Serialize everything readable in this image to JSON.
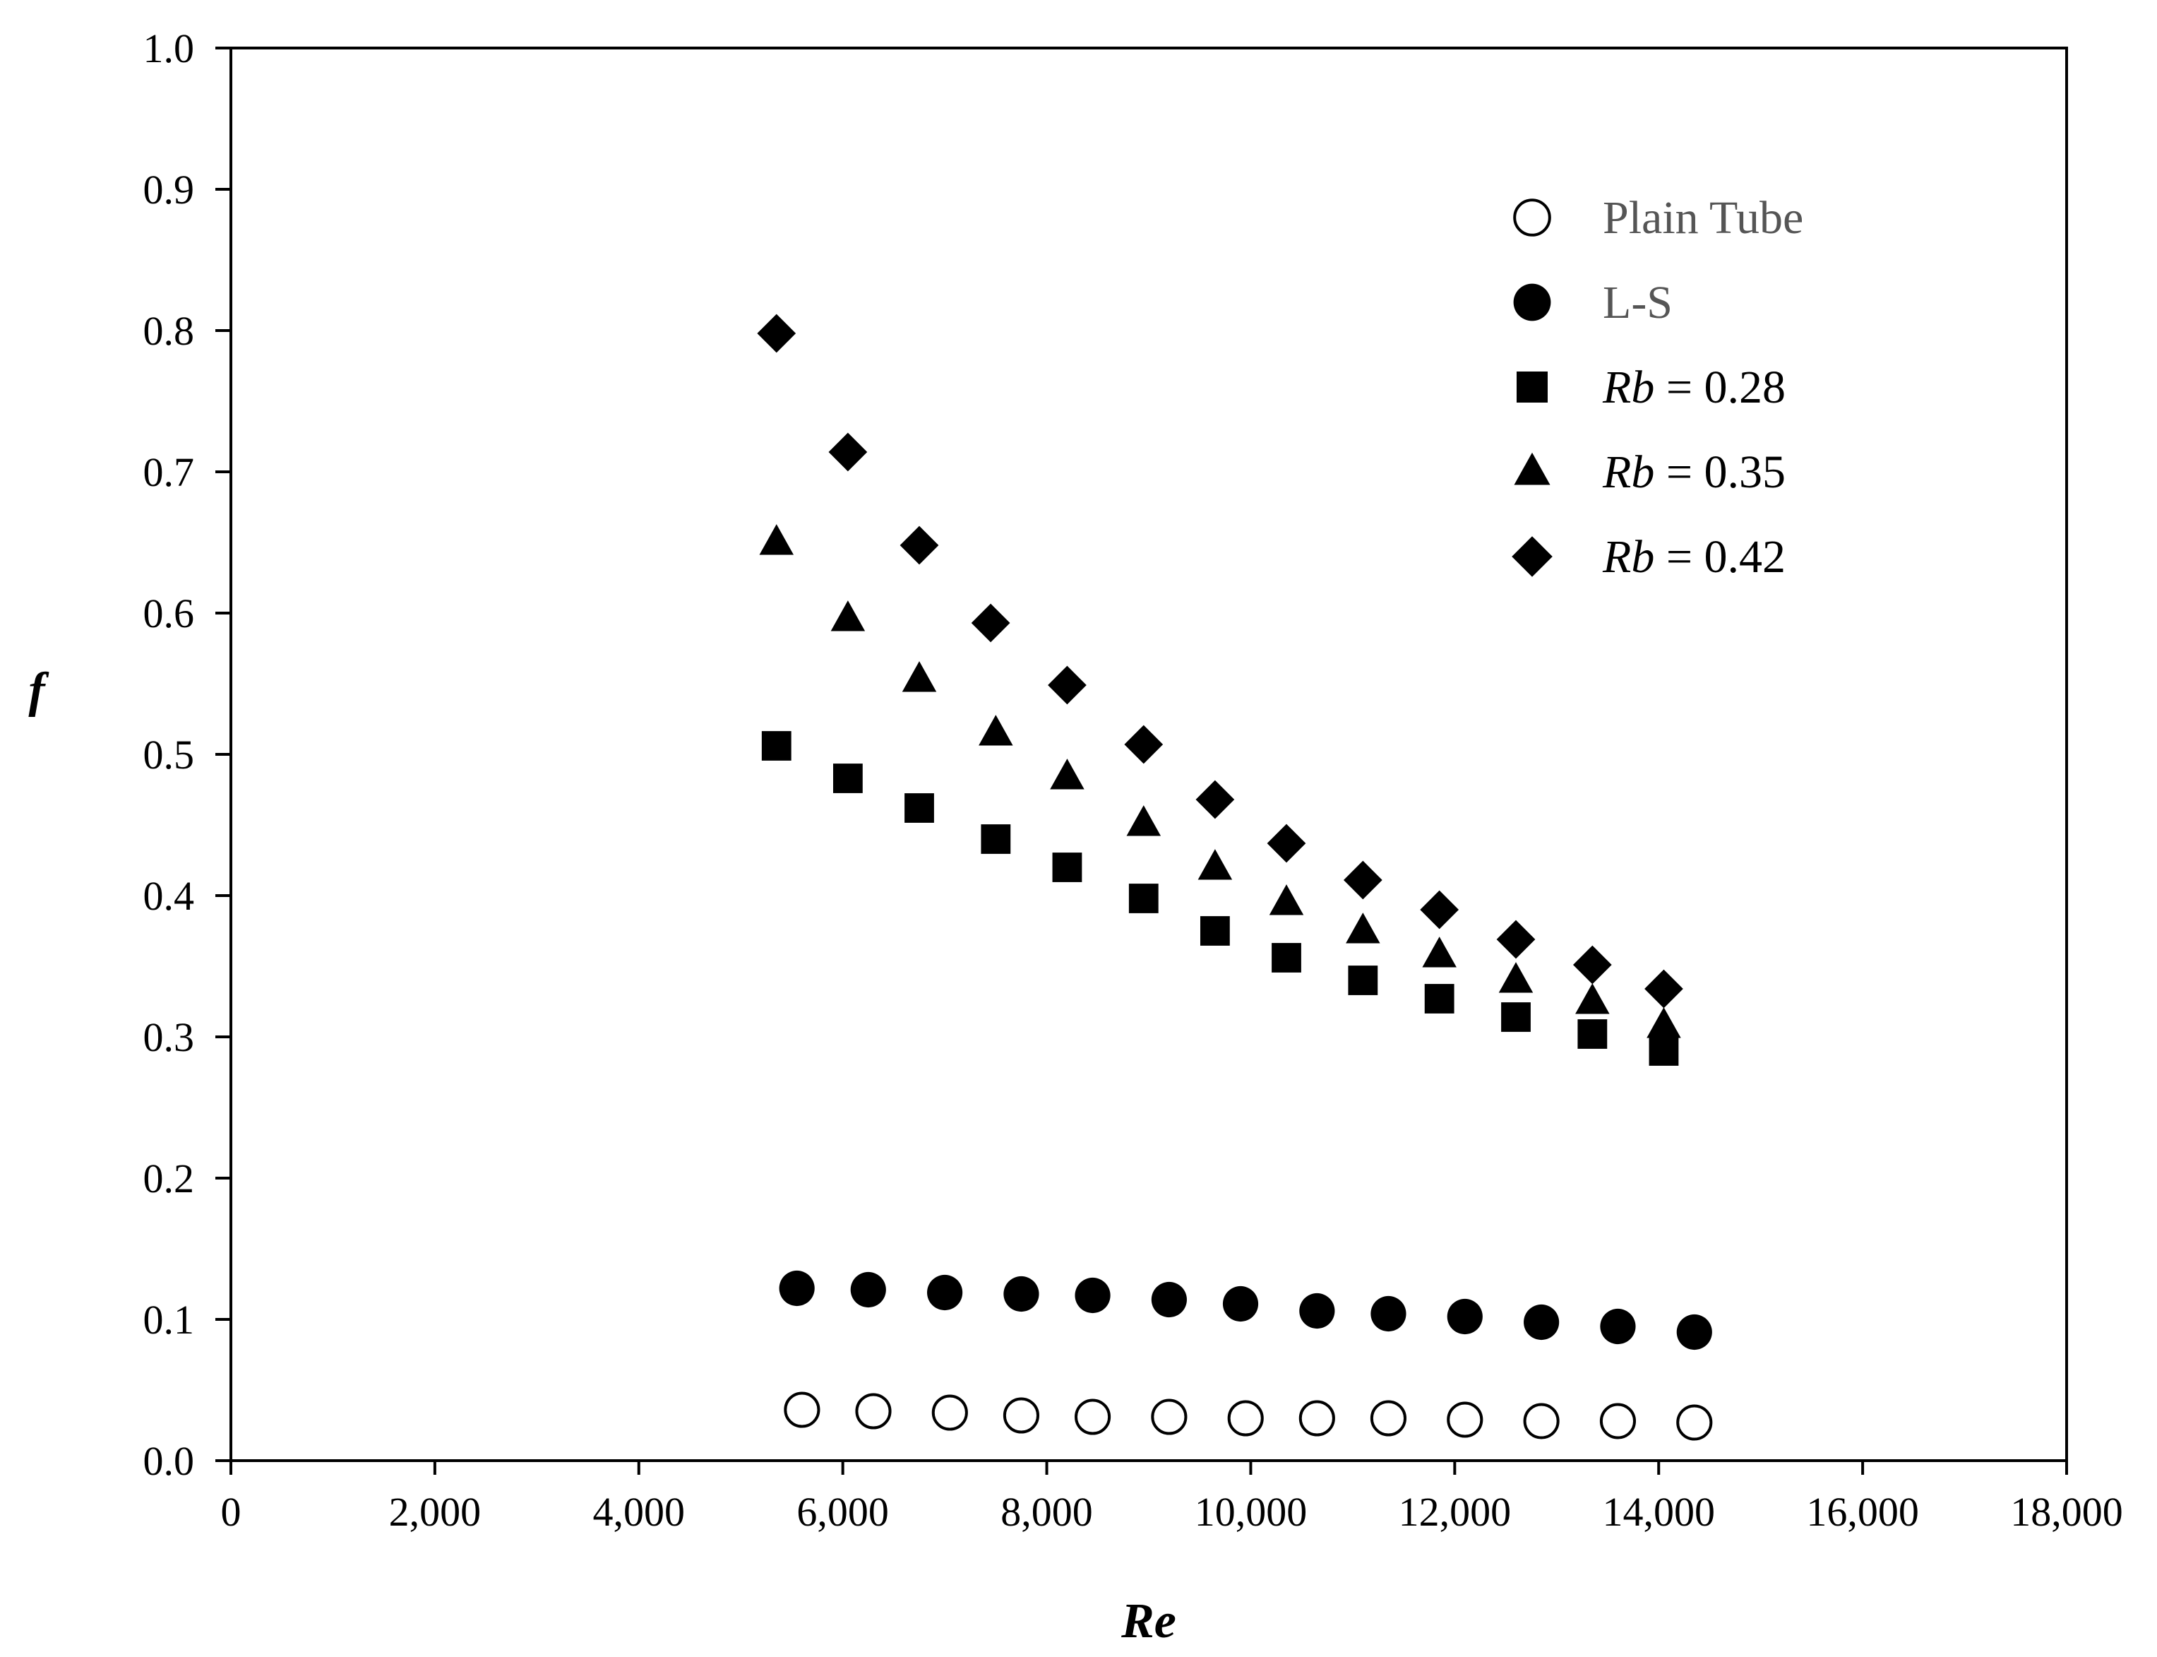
{
  "chart_data": {
    "type": "scatter",
    "xlabel": "Re",
    "ylabel": "f",
    "xlim": [
      0,
      18000
    ],
    "ylim": [
      0.0,
      1.0
    ],
    "x_ticks": [
      "0",
      "2,000",
      "4,000",
      "6,000",
      "8,000",
      "10,000",
      "12,000",
      "14,000",
      "16,000",
      "18,000"
    ],
    "y_ticks": [
      "0.0",
      "0.1",
      "0.2",
      "0.3",
      "0.4",
      "0.5",
      "0.6",
      "0.7",
      "0.8",
      "0.9",
      "1.0"
    ],
    "legend_position": "top-right",
    "series": [
      {
        "name": "Plain Tube",
        "marker": "open-circle",
        "points": [
          [
            5600,
            0.036
          ],
          [
            6300,
            0.035
          ],
          [
            7050,
            0.034
          ],
          [
            7750,
            0.032
          ],
          [
            8450,
            0.031
          ],
          [
            9200,
            0.031
          ],
          [
            9950,
            0.03
          ],
          [
            10650,
            0.03
          ],
          [
            11350,
            0.03
          ],
          [
            12100,
            0.029
          ],
          [
            12850,
            0.028
          ],
          [
            13600,
            0.028
          ],
          [
            14350,
            0.027
          ]
        ]
      },
      {
        "name": "L-S",
        "marker": "filled-circle",
        "points": [
          [
            5550,
            0.122
          ],
          [
            6250,
            0.121
          ],
          [
            7000,
            0.119
          ],
          [
            7750,
            0.118
          ],
          [
            8450,
            0.117
          ],
          [
            9200,
            0.114
          ],
          [
            9900,
            0.111
          ],
          [
            10650,
            0.106
          ],
          [
            11350,
            0.104
          ],
          [
            12100,
            0.102
          ],
          [
            12850,
            0.098
          ],
          [
            13600,
            0.095
          ],
          [
            14350,
            0.091
          ]
        ]
      },
      {
        "name_italic": "Rb",
        "name_rest": " = 0.28",
        "marker": "square",
        "points": [
          [
            5350,
            0.506
          ],
          [
            6050,
            0.483
          ],
          [
            6750,
            0.462
          ],
          [
            7500,
            0.44
          ],
          [
            8200,
            0.42
          ],
          [
            8950,
            0.398
          ],
          [
            9650,
            0.375
          ],
          [
            10350,
            0.356
          ],
          [
            11100,
            0.34
          ],
          [
            11850,
            0.327
          ],
          [
            12600,
            0.314
          ],
          [
            13350,
            0.302
          ],
          [
            14050,
            0.29
          ]
        ]
      },
      {
        "name_italic": "Rb",
        "name_rest": " = 0.35",
        "marker": "triangle",
        "points": [
          [
            5350,
            0.65
          ],
          [
            6050,
            0.596
          ],
          [
            6750,
            0.553
          ],
          [
            7500,
            0.515
          ],
          [
            8200,
            0.484
          ],
          [
            8950,
            0.451
          ],
          [
            9650,
            0.42
          ],
          [
            10350,
            0.395
          ],
          [
            11100,
            0.375
          ],
          [
            11850,
            0.358
          ],
          [
            12600,
            0.34
          ],
          [
            13350,
            0.325
          ],
          [
            14050,
            0.308
          ]
        ]
      },
      {
        "name_italic": "Rb",
        "name_rest": " = 0.42",
        "marker": "diamond",
        "points": [
          [
            5350,
            0.798
          ],
          [
            6050,
            0.714
          ],
          [
            6750,
            0.648
          ],
          [
            7450,
            0.593
          ],
          [
            8200,
            0.549
          ],
          [
            8950,
            0.507
          ],
          [
            9650,
            0.468
          ],
          [
            10350,
            0.437
          ],
          [
            11100,
            0.411
          ],
          [
            11850,
            0.39
          ],
          [
            12600,
            0.369
          ],
          [
            13350,
            0.351
          ],
          [
            14050,
            0.334
          ]
        ]
      }
    ]
  }
}
